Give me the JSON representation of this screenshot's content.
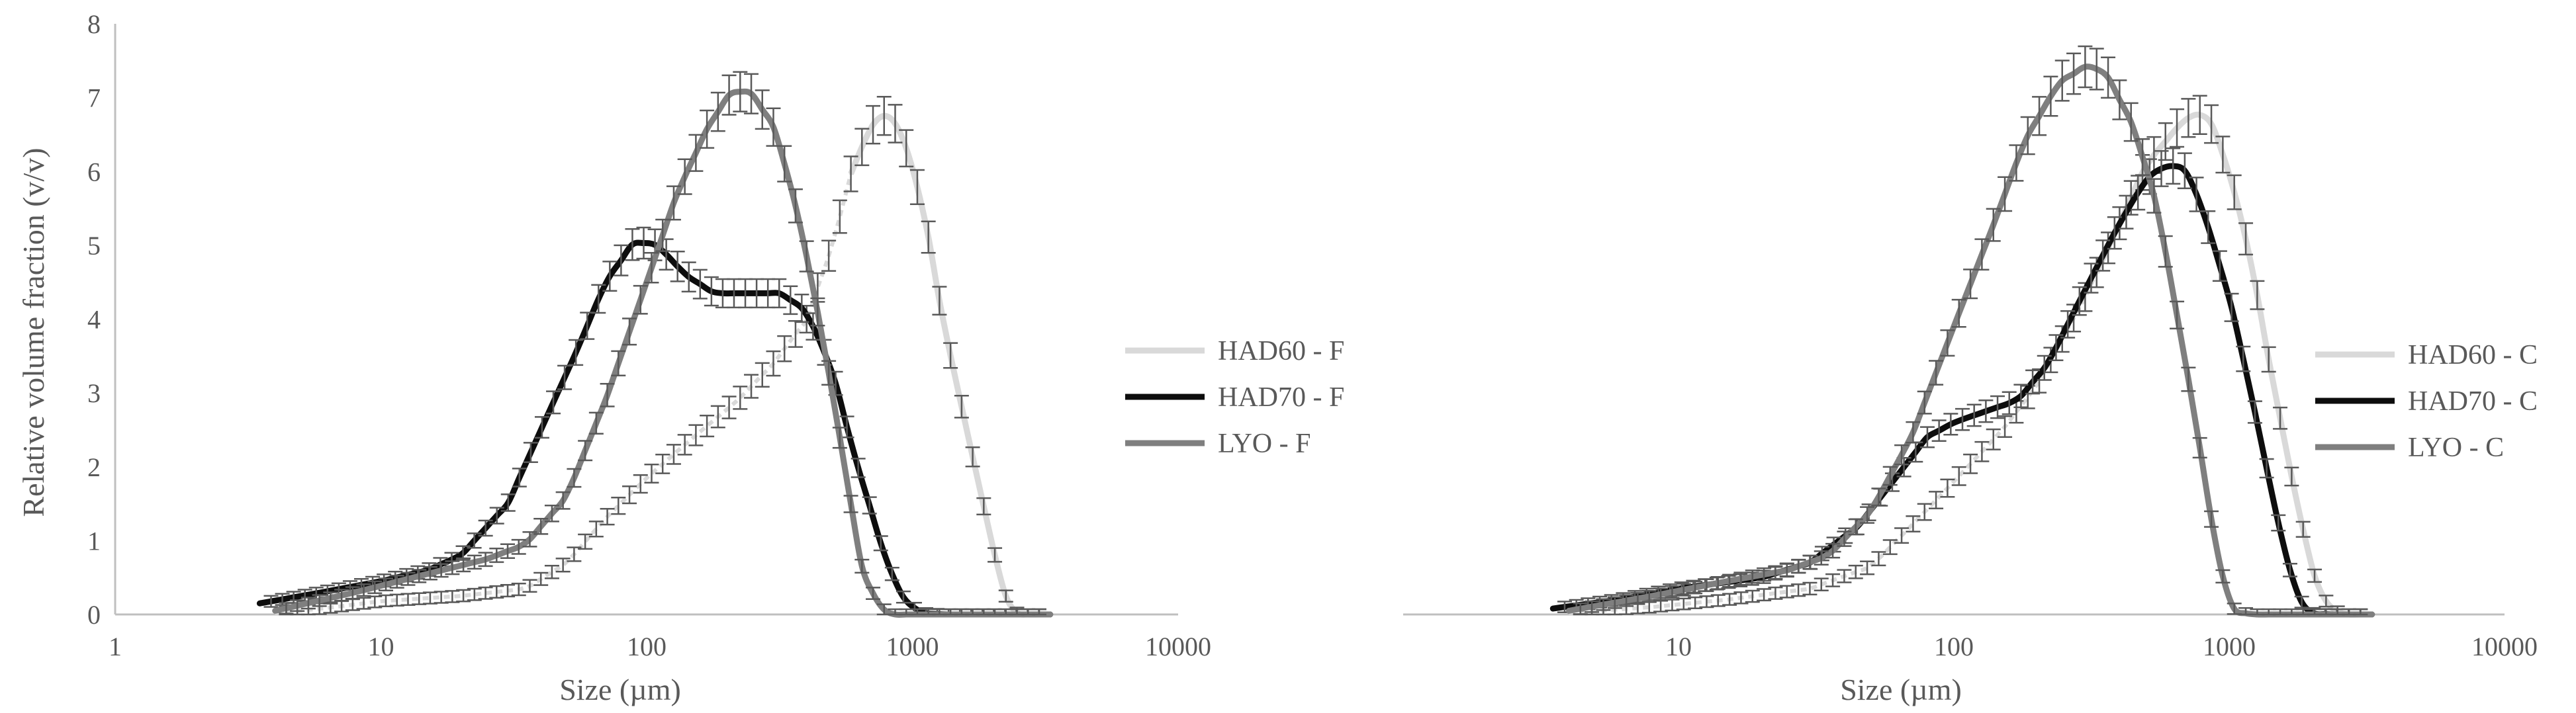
{
  "chart_data": [
    {
      "type": "line",
      "xscale": "log",
      "xlim": [
        1,
        10000
      ],
      "ylim": [
        0,
        8
      ],
      "xlabel": "Size (µm)",
      "ylabel": "Relative volume fraction (v/v)",
      "x_ticks": [
        "1",
        "10",
        "100",
        "1000",
        "10000"
      ],
      "y_ticks": [
        "0",
        "1",
        "2",
        "3",
        "4",
        "5",
        "6",
        "7",
        "8"
      ],
      "error_bars": true,
      "legend_position": "right",
      "series": [
        {
          "name": "HAD60 - F",
          "color": "#d9d9d9",
          "dashed_from_x": 550,
          "points": [
            [
              4,
              0.02
            ],
            [
              6,
              0.08
            ],
            [
              10,
              0.18
            ],
            [
              20,
              0.25
            ],
            [
              35,
              0.35
            ],
            [
              50,
              0.7
            ],
            [
              70,
              1.3
            ],
            [
              100,
              1.85
            ],
            [
              150,
              2.4
            ],
            [
              220,
              2.9
            ],
            [
              300,
              3.4
            ],
            [
              400,
              4.0
            ],
            [
              500,
              5.0
            ],
            [
              600,
              6.1
            ],
            [
              750,
              6.8
            ],
            [
              900,
              6.6
            ],
            [
              1100,
              5.5
            ],
            [
              1300,
              4.0
            ],
            [
              1600,
              2.5
            ],
            [
              1900,
              1.3
            ],
            [
              2200,
              0.3
            ],
            [
              2500,
              0
            ],
            [
              3300,
              0
            ]
          ]
        },
        {
          "name": "HAD70 - F",
          "color": "#0d0d0d",
          "points": [
            [
              3.5,
              0.15
            ],
            [
              6,
              0.3
            ],
            [
              10,
              0.45
            ],
            [
              15,
              0.6
            ],
            [
              20,
              0.8
            ],
            [
              30,
              1.5
            ],
            [
              40,
              2.5
            ],
            [
              55,
              3.6
            ],
            [
              70,
              4.5
            ],
            [
              90,
              5.05
            ],
            [
              110,
              5.0
            ],
            [
              140,
              4.6
            ],
            [
              180,
              4.35
            ],
            [
              250,
              4.35
            ],
            [
              320,
              4.35
            ],
            [
              400,
              4.1
            ],
            [
              500,
              3.3
            ],
            [
              600,
              2.2
            ],
            [
              700,
              1.4
            ],
            [
              800,
              0.7
            ],
            [
              950,
              0.15
            ],
            [
              1100,
              0.02
            ],
            [
              1300,
              0
            ],
            [
              3300,
              0
            ]
          ]
        },
        {
          "name": "LYO - F",
          "color": "#7f7f7f",
          "points": [
            [
              4,
              0.05
            ],
            [
              8,
              0.3
            ],
            [
              15,
              0.55
            ],
            [
              25,
              0.75
            ],
            [
              35,
              0.95
            ],
            [
              50,
              1.6
            ],
            [
              70,
              2.9
            ],
            [
              100,
              4.5
            ],
            [
              130,
              5.7
            ],
            [
              170,
              6.6
            ],
            [
              210,
              7.1
            ],
            [
              250,
              7.05
            ],
            [
              300,
              6.6
            ],
            [
              350,
              5.8
            ],
            [
              420,
              4.5
            ],
            [
              500,
              3.0
            ],
            [
              580,
              1.6
            ],
            [
              650,
              0.6
            ],
            [
              750,
              0.1
            ],
            [
              850,
              0
            ],
            [
              3300,
              0
            ]
          ]
        }
      ]
    },
    {
      "type": "line",
      "xscale": "log",
      "xlim": [
        1,
        10000
      ],
      "ylim": [
        0,
        8
      ],
      "xlabel": "Size (µm)",
      "ylabel": "",
      "x_ticks": [
        "10",
        "100",
        "1000",
        "10000"
      ],
      "error_bars": true,
      "legend_position": "right",
      "series": [
        {
          "name": "HAD60 - C",
          "color": "#d9d9d9",
          "dashed_from_x": 300,
          "points": [
            [
              4,
              0.02
            ],
            [
              8,
              0.1
            ],
            [
              15,
              0.2
            ],
            [
              30,
              0.35
            ],
            [
              50,
              0.65
            ],
            [
              70,
              1.2
            ],
            [
              100,
              1.8
            ],
            [
              150,
              2.5
            ],
            [
              200,
              3.1
            ],
            [
              300,
              4.3
            ],
            [
              400,
              5.3
            ],
            [
              500,
              6.1
            ],
            [
              650,
              6.6
            ],
            [
              750,
              6.8
            ],
            [
              850,
              6.7
            ],
            [
              1000,
              6.0
            ],
            [
              1200,
              4.8
            ],
            [
              1400,
              3.4
            ],
            [
              1700,
              1.8
            ],
            [
              2000,
              0.6
            ],
            [
              2300,
              0.1
            ],
            [
              2600,
              0
            ],
            [
              3300,
              0
            ]
          ]
        },
        {
          "name": "HAD70 - C",
          "color": "#0d0d0d",
          "points": [
            [
              3.5,
              0.08
            ],
            [
              6,
              0.2
            ],
            [
              10,
              0.35
            ],
            [
              20,
              0.5
            ],
            [
              30,
              0.7
            ],
            [
              45,
              1.2
            ],
            [
              60,
              1.8
            ],
            [
              80,
              2.4
            ],
            [
              100,
              2.6
            ],
            [
              130,
              2.75
            ],
            [
              170,
              2.9
            ],
            [
              220,
              3.4
            ],
            [
              300,
              4.4
            ],
            [
              400,
              5.3
            ],
            [
              500,
              5.9
            ],
            [
              600,
              6.1
            ],
            [
              700,
              6.0
            ],
            [
              800,
              5.5
            ],
            [
              1000,
              4.3
            ],
            [
              1200,
              3.0
            ],
            [
              1400,
              1.8
            ],
            [
              1600,
              0.8
            ],
            [
              1800,
              0.2
            ],
            [
              2000,
              0.02
            ],
            [
              2300,
              0
            ],
            [
              3300,
              0
            ]
          ]
        },
        {
          "name": "LYO - C",
          "color": "#7f7f7f",
          "points": [
            [
              4,
              0.05
            ],
            [
              8,
              0.25
            ],
            [
              15,
              0.45
            ],
            [
              25,
              0.6
            ],
            [
              35,
              0.8
            ],
            [
              50,
              1.4
            ],
            [
              70,
              2.4
            ],
            [
              100,
              3.9
            ],
            [
              140,
              5.3
            ],
            [
              180,
              6.4
            ],
            [
              240,
              7.2
            ],
            [
              310,
              7.45
            ],
            [
              360,
              7.3
            ],
            [
              450,
              6.6
            ],
            [
              550,
              5.5
            ],
            [
              650,
              4.0
            ],
            [
              750,
              2.7
            ],
            [
              850,
              1.4
            ],
            [
              950,
              0.5
            ],
            [
              1050,
              0.05
            ],
            [
              1200,
              0
            ],
            [
              3300,
              0
            ]
          ]
        }
      ]
    }
  ]
}
